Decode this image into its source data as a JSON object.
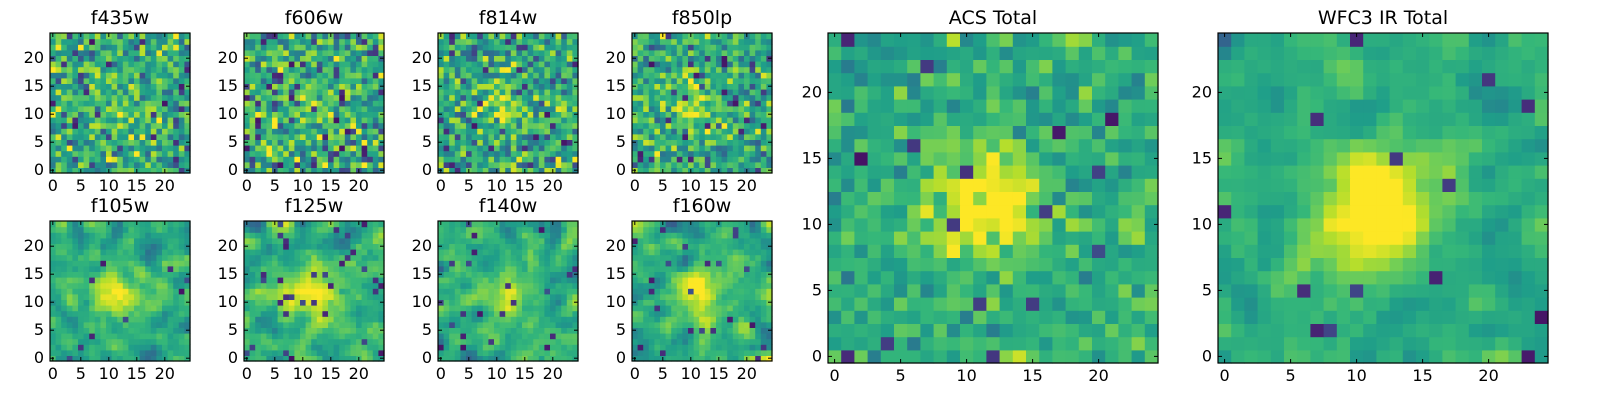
{
  "figure": {
    "description_type": "heatmap grid of cutout images"
  },
  "chart_data": [
    {
      "type": "heatmap",
      "title": "f435w",
      "grid_size": 25,
      "xticks": [
        0,
        5,
        10,
        15,
        20
      ],
      "yticks": [
        0,
        5,
        10,
        15,
        20
      ],
      "xlim": [
        0,
        25
      ],
      "ylim": [
        0,
        25
      ],
      "seed": 11,
      "smooth": 0,
      "noise": 0.75,
      "peak": 0.15,
      "dark_frac": 0.04,
      "colormap": "viridis"
    },
    {
      "type": "heatmap",
      "title": "f606w",
      "grid_size": 25,
      "xticks": [
        0,
        5,
        10,
        15,
        20
      ],
      "yticks": [
        0,
        5,
        10,
        15,
        20
      ],
      "xlim": [
        0,
        25
      ],
      "ylim": [
        0,
        25
      ],
      "seed": 23,
      "smooth": 0,
      "noise": 0.8,
      "peak": 0.12,
      "dark_frac": 0.08,
      "colormap": "viridis"
    },
    {
      "type": "heatmap",
      "title": "f814w",
      "grid_size": 25,
      "xticks": [
        0,
        5,
        10,
        15,
        20
      ],
      "yticks": [
        0,
        5,
        10,
        15,
        20
      ],
      "xlim": [
        0,
        25
      ],
      "ylim": [
        0,
        25
      ],
      "seed": 37,
      "smooth": 0,
      "noise": 0.75,
      "peak": 0.15,
      "dark_frac": 0.05,
      "colormap": "viridis"
    },
    {
      "type": "heatmap",
      "title": "f850lp",
      "grid_size": 25,
      "xticks": [
        0,
        5,
        10,
        15,
        20
      ],
      "yticks": [
        0,
        5,
        10,
        15,
        20
      ],
      "xlim": [
        0,
        25
      ],
      "ylim": [
        0,
        25
      ],
      "seed": 41,
      "smooth": 0,
      "noise": 0.7,
      "peak": 0.25,
      "dark_frac": 0.05,
      "colormap": "viridis"
    },
    {
      "type": "heatmap",
      "title": "f105w",
      "grid_size": 25,
      "xticks": [
        0,
        5,
        10,
        15,
        20
      ],
      "yticks": [
        0,
        5,
        10,
        15,
        20
      ],
      "xlim": [
        0,
        25
      ],
      "ylim": [
        0,
        25
      ],
      "seed": 53,
      "smooth": 1,
      "noise": 0.6,
      "peak": 0.35,
      "dark_frac": 0.03,
      "colormap": "viridis"
    },
    {
      "type": "heatmap",
      "title": "f125w",
      "grid_size": 25,
      "xticks": [
        0,
        5,
        10,
        15,
        20
      ],
      "yticks": [
        0,
        5,
        10,
        15,
        20
      ],
      "xlim": [
        0,
        25
      ],
      "ylim": [
        0,
        25
      ],
      "seed": 67,
      "smooth": 1,
      "noise": 0.6,
      "peak": 0.35,
      "dark_frac": 0.04,
      "colormap": "viridis"
    },
    {
      "type": "heatmap",
      "title": "f140w",
      "grid_size": 25,
      "xticks": [
        0,
        5,
        10,
        15,
        20
      ],
      "yticks": [
        0,
        5,
        10,
        15,
        20
      ],
      "xlim": [
        0,
        25
      ],
      "ylim": [
        0,
        25
      ],
      "seed": 71,
      "smooth": 1,
      "noise": 0.6,
      "peak": 0.35,
      "dark_frac": 0.03,
      "colormap": "viridis"
    },
    {
      "type": "heatmap",
      "title": "f160w",
      "grid_size": 25,
      "xticks": [
        0,
        5,
        10,
        15,
        20
      ],
      "yticks": [
        0,
        5,
        10,
        15,
        20
      ],
      "xlim": [
        0,
        25
      ],
      "ylim": [
        0,
        25
      ],
      "seed": 83,
      "smooth": 1,
      "noise": 0.6,
      "peak": 0.4,
      "dark_frac": 0.03,
      "colormap": "viridis"
    },
    {
      "type": "heatmap",
      "title": "ACS Total",
      "grid_size": 25,
      "xticks": [
        0,
        5,
        10,
        15,
        20
      ],
      "yticks": [
        0,
        5,
        10,
        15,
        20
      ],
      "xlim": [
        0,
        25
      ],
      "ylim": [
        0,
        25
      ],
      "seed": 97,
      "smooth": 0,
      "noise": 0.45,
      "peak": 0.45,
      "dark_frac": 0.03,
      "colormap": "viridis"
    },
    {
      "type": "heatmap",
      "title": "WFC3 IR Total",
      "grid_size": 25,
      "xticks": [
        0,
        5,
        10,
        15,
        20
      ],
      "yticks": [
        0,
        5,
        10,
        15,
        20
      ],
      "xlim": [
        0,
        25
      ],
      "ylim": [
        0,
        25
      ],
      "seed": 101,
      "smooth": 1,
      "noise": 0.45,
      "peak": 0.6,
      "dark_frac": 0.02,
      "colormap": "viridis"
    }
  ]
}
